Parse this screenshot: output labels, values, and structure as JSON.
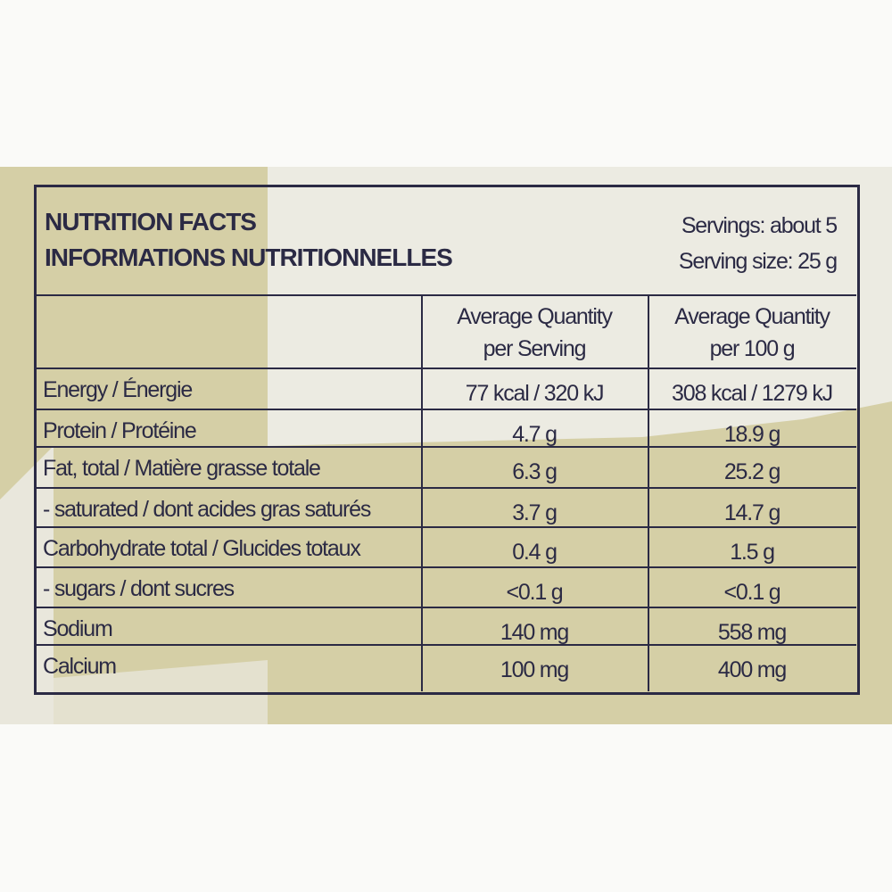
{
  "header": {
    "title": [
      "NUTRITION FACTS",
      "INFORMATIONS NUTRITIONNELLES"
    ],
    "servings": "Servings: about 5",
    "serving_size": "Serving size: 25 g"
  },
  "table": {
    "columns": [
      [
        "Average Quantity",
        "per Serving"
      ],
      [
        "Average Quantity",
        "per 100 g"
      ]
    ],
    "rows": [
      [
        "Energy / Énergie",
        "77 kcal / 320 kJ",
        "308 kcal / 1279 kJ"
      ],
      [
        "Protein / Protéine",
        "4.7 g",
        "18.9 g"
      ],
      [
        "Fat, total / Matière grasse totale",
        "6.3 g",
        "25.2 g"
      ],
      [
        "- saturated / dont acides gras saturés",
        "3.7 g",
        "14.7 g"
      ],
      [
        "Carbohydrate total / Glucides totaux",
        "0.4 g",
        "1.5 g"
      ],
      [
        "- sugars / dont sucres",
        "<0.1 g",
        "<0.1 g"
      ],
      [
        "Sodium",
        "140 mg",
        "558 mg"
      ],
      [
        "Calcium",
        "100 mg",
        "400 mg"
      ]
    ]
  }
}
